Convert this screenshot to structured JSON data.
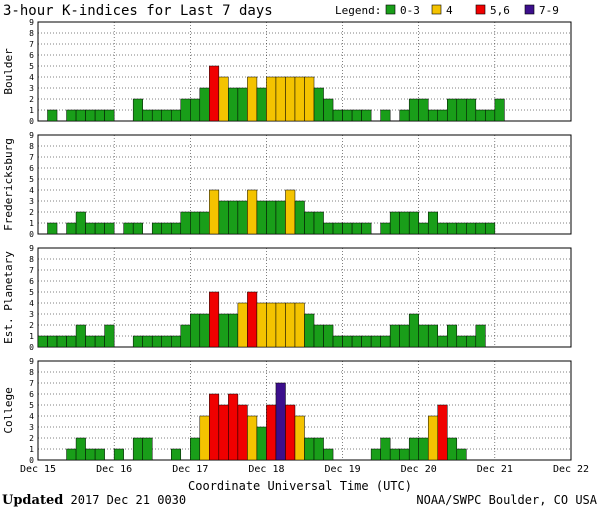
{
  "title": "3-hour K-indices for Last 7 days",
  "legend": {
    "label": "Legend:",
    "items": [
      {
        "label": "0-3",
        "color": "#199e19"
      },
      {
        "label": "4",
        "color": "#f4c300"
      },
      {
        "label": "5,6",
        "color": "#f00000"
      },
      {
        "label": "7-9",
        "color": "#3c0f8c"
      }
    ]
  },
  "chart_data": {
    "type": "bar",
    "xlabel": "Coordinate Universal Time (UTC)",
    "x_ticks": [
      "Dec 15",
      "Dec 16",
      "Dec 17",
      "Dec 18",
      "Dec 19",
      "Dec 20",
      "Dec 21",
      "Dec 22"
    ],
    "y_ticks": [
      "0",
      "1",
      "2",
      "3",
      "4",
      "5",
      "6",
      "7",
      "8",
      "9"
    ],
    "ylim": [
      0,
      9
    ],
    "bins_per_day": 8,
    "grid": true,
    "colors": {
      "low": "#199e19",
      "four": "#f4c300",
      "high": "#f00000",
      "storm": "#3c0f8c"
    },
    "panels": [
      {
        "name": "Boulder",
        "values": [
          0,
          1,
          0,
          1,
          1,
          1,
          1,
          1,
          0,
          0,
          2,
          1,
          1,
          1,
          1,
          2,
          2,
          3,
          5,
          4,
          3,
          3,
          4,
          3,
          4,
          4,
          4,
          4,
          4,
          3,
          2,
          1,
          1,
          1,
          1,
          0,
          1,
          0,
          1,
          2,
          2,
          1,
          1,
          2,
          2,
          2,
          1,
          1,
          2,
          0,
          0,
          0,
          0,
          0,
          0,
          0,
          0
        ]
      },
      {
        "name": "Fredericksburg",
        "values": [
          0,
          1,
          0,
          1,
          2,
          1,
          1,
          1,
          0,
          1,
          1,
          0,
          1,
          1,
          1,
          2,
          2,
          2,
          4,
          3,
          3,
          3,
          4,
          3,
          3,
          3,
          4,
          3,
          2,
          2,
          1,
          1,
          1,
          1,
          1,
          0,
          1,
          2,
          2,
          2,
          1,
          2,
          1,
          1,
          1,
          1,
          1,
          1,
          0,
          0,
          0,
          0,
          0,
          0,
          0,
          0,
          0
        ]
      },
      {
        "name": "Est. Planetary",
        "values": [
          1,
          1,
          1,
          1,
          2,
          1,
          1,
          2,
          0,
          0,
          1,
          1,
          1,
          1,
          1,
          2,
          3,
          3,
          5,
          3,
          3,
          4,
          5,
          4,
          4,
          4,
          4,
          4,
          3,
          2,
          2,
          1,
          1,
          1,
          1,
          1,
          1,
          2,
          2,
          3,
          2,
          2,
          1,
          2,
          1,
          1,
          2,
          0,
          0,
          0,
          0,
          0,
          0,
          0,
          0,
          0,
          0
        ]
      },
      {
        "name": "College",
        "values": [
          0,
          0,
          0,
          1,
          2,
          1,
          1,
          0,
          1,
          0,
          2,
          2,
          0,
          0,
          1,
          0,
          2,
          4,
          6,
          5,
          6,
          5,
          4,
          3,
          5,
          7,
          5,
          4,
          2,
          2,
          1,
          0,
          0,
          0,
          0,
          1,
          2,
          1,
          1,
          2,
          2,
          4,
          5,
          2,
          1,
          0,
          0,
          0,
          0,
          0,
          0,
          0,
          0,
          0,
          0,
          0,
          0
        ]
      }
    ]
  },
  "footer": {
    "updated_label": "Updated",
    "updated_value": " 2017 Dec 21 0030",
    "source": "NOAA/SWPC Boulder, CO USA"
  }
}
